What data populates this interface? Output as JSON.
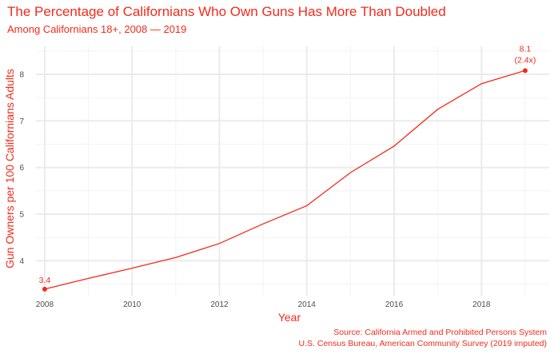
{
  "chart_data": {
    "type": "line",
    "title": "The Percentage of Californians Who Own Guns Has More Than Doubled",
    "subtitle": "Among Californians 18+, 2008 — 2019",
    "xlabel": "Year",
    "ylabel": "Gun Owners per 100 Californians Adults",
    "caption_lines": [
      "Source: California Armed and Prohibited Persons System",
      "U.S. Census Bureau, American Community Survey (2019 imputed)"
    ],
    "x": [
      2008,
      2009,
      2010,
      2011,
      2012,
      2013,
      2014,
      2015,
      2016,
      2017,
      2018,
      2019
    ],
    "series": [
      {
        "values": [
          3.39,
          3.62,
          3.84,
          4.07,
          4.37,
          4.79,
          5.18,
          5.89,
          6.46,
          7.25,
          7.8,
          8.08
        ]
      }
    ],
    "xticks": [
      2008,
      2010,
      2012,
      2014,
      2016,
      2018
    ],
    "yticks": [
      4,
      5,
      6,
      7,
      8
    ],
    "xlim": [
      2007.8,
      2019.55
    ],
    "ylim": [
      3.25,
      8.6
    ],
    "grid": true,
    "color": "#f42a1b",
    "annotations": {
      "start": {
        "x": 2008,
        "y": 3.39,
        "label": "3.4"
      },
      "end": {
        "x": 2019,
        "y": 8.08,
        "label": "8.1",
        "label2": "(2.4x)"
      }
    }
  }
}
